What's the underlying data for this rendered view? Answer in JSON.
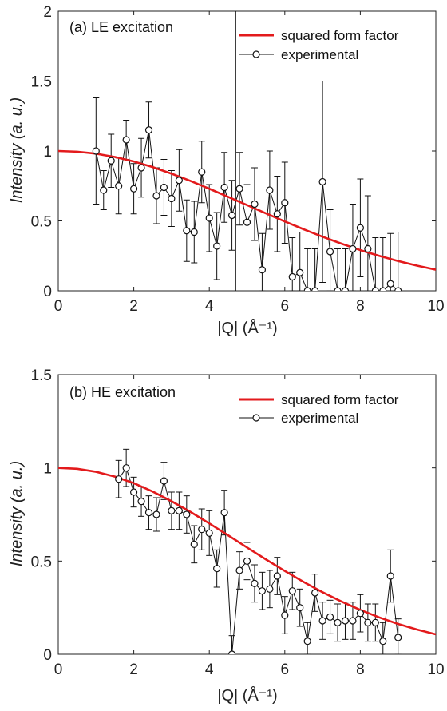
{
  "chart_data": [
    {
      "type": "scatter",
      "panel_label": "(a)",
      "title": "LE excitation",
      "xlabel": "|Q| (Å⁻¹)",
      "ylabel": "Intensity (a. u.)",
      "xlim": [
        0,
        10
      ],
      "ylim": [
        0,
        2
      ],
      "xticks": [
        0,
        2,
        4,
        6,
        8,
        10
      ],
      "yticks": [
        0,
        0.5,
        1,
        1.5,
        2
      ],
      "xtick_labels": [
        "0",
        "2",
        "4",
        "6",
        "8",
        "10"
      ],
      "ytick_labels": [
        "0",
        "0.5",
        "1",
        "1.5",
        "2"
      ],
      "grid": false,
      "legend_position": "top-right",
      "vline_x": 4.7,
      "series": [
        {
          "name": "squared form factor",
          "kind": "line",
          "color": "#e31a1c",
          "x": [
            0,
            0.5,
            1,
            1.5,
            2,
            2.5,
            3,
            3.5,
            4,
            4.5,
            5,
            5.5,
            6,
            6.5,
            7,
            7.5,
            8,
            8.5,
            9,
            9.5,
            10
          ],
          "y": [
            1.0,
            0.995,
            0.981,
            0.957,
            0.925,
            0.885,
            0.838,
            0.786,
            0.73,
            0.672,
            0.613,
            0.554,
            0.496,
            0.44,
            0.387,
            0.337,
            0.291,
            0.25,
            0.213,
            0.18,
            0.151
          ]
        },
        {
          "name": "experimental",
          "kind": "errorbar",
          "color": "#111111",
          "x": [
            1.0,
            1.2,
            1.4,
            1.6,
            1.8,
            2.0,
            2.2,
            2.4,
            2.6,
            2.8,
            3.0,
            3.2,
            3.4,
            3.6,
            3.8,
            4.0,
            4.2,
            4.4,
            4.6,
            4.8,
            5.0,
            5.2,
            5.4,
            5.6,
            5.8,
            6.0,
            6.2,
            6.4,
            6.6,
            6.8,
            7.0,
            7.2,
            7.4,
            7.6,
            7.8,
            8.0,
            8.2,
            8.4,
            8.6,
            8.8,
            9.0
          ],
          "y": [
            1.0,
            0.72,
            0.93,
            0.75,
            1.08,
            0.73,
            0.88,
            1.15,
            0.68,
            0.74,
            0.66,
            0.79,
            0.43,
            0.42,
            0.85,
            0.52,
            0.32,
            0.74,
            0.54,
            0.73,
            0.49,
            0.62,
            0.15,
            0.72,
            0.55,
            0.63,
            0.1,
            0.13,
            0.0,
            0.0,
            0.78,
            0.28,
            0.0,
            0.0,
            0.3,
            0.45,
            0.3,
            0.0,
            0.0,
            0.05,
            0.0
          ],
          "err": [
            0.38,
            0.14,
            0.19,
            0.2,
            0.14,
            0.18,
            0.21,
            0.2,
            0.2,
            0.2,
            0.2,
            0.22,
            0.22,
            0.22,
            0.22,
            0.24,
            0.24,
            0.25,
            0.25,
            0.26,
            0.27,
            0.26,
            0.26,
            0.28,
            0.27,
            0.29,
            0.28,
            0.29,
            0.3,
            0.3,
            0.72,
            0.3,
            0.3,
            0.3,
            0.32,
            0.35,
            0.38,
            0.38,
            0.38,
            0.36,
            0.42
          ]
        }
      ]
    },
    {
      "type": "scatter",
      "panel_label": "(b)",
      "title": "HE excitation",
      "xlabel": "|Q| (Å⁻¹)",
      "ylabel": "Intensity (a. u.)",
      "xlim": [
        0,
        10
      ],
      "ylim": [
        0,
        1.5
      ],
      "xticks": [
        0,
        2,
        4,
        6,
        8,
        10
      ],
      "yticks": [
        0,
        0.5,
        1,
        1.5
      ],
      "xtick_labels": [
        "0",
        "2",
        "4",
        "6",
        "8",
        "10"
      ],
      "ytick_labels": [
        "0",
        "0.5",
        "1",
        "1.5"
      ],
      "grid": false,
      "legend_position": "top-right",
      "series": [
        {
          "name": "squared form factor",
          "kind": "line",
          "color": "#e31a1c",
          "x": [
            0,
            0.5,
            1,
            1.5,
            2,
            2.5,
            3,
            3.5,
            4,
            4.5,
            5,
            5.5,
            6,
            6.5,
            7,
            7.5,
            8,
            8.5,
            9,
            9.5,
            10
          ],
          "y": [
            1.0,
            0.995,
            0.979,
            0.953,
            0.918,
            0.873,
            0.821,
            0.764,
            0.702,
            0.638,
            0.573,
            0.509,
            0.447,
            0.388,
            0.333,
            0.283,
            0.238,
            0.198,
            0.163,
            0.133,
            0.107
          ]
        },
        {
          "name": "experimental",
          "kind": "errorbar",
          "color": "#111111",
          "x": [
            1.6,
            1.8,
            2.0,
            2.2,
            2.4,
            2.6,
            2.8,
            3.0,
            3.2,
            3.4,
            3.6,
            3.8,
            4.0,
            4.2,
            4.4,
            4.6,
            4.8,
            5.0,
            5.2,
            5.4,
            5.6,
            5.8,
            6.0,
            6.2,
            6.4,
            6.6,
            6.8,
            7.0,
            7.2,
            7.4,
            7.6,
            7.8,
            8.0,
            8.2,
            8.4,
            8.6,
            8.8,
            9.0
          ],
          "y": [
            0.94,
            1.0,
            0.87,
            0.82,
            0.76,
            0.75,
            0.93,
            0.77,
            0.77,
            0.75,
            0.59,
            0.67,
            0.65,
            0.46,
            0.76,
            0.0,
            0.45,
            0.5,
            0.38,
            0.34,
            0.35,
            0.42,
            0.21,
            0.34,
            0.25,
            0.07,
            0.33,
            0.18,
            0.2,
            0.17,
            0.18,
            0.18,
            0.22,
            0.17,
            0.17,
            0.07,
            0.42,
            0.09
          ],
          "err": [
            0.1,
            0.1,
            0.08,
            0.08,
            0.09,
            0.09,
            0.1,
            0.1,
            0.1,
            0.1,
            0.1,
            0.11,
            0.12,
            0.1,
            0.12,
            0.1,
            0.1,
            0.1,
            0.1,
            0.1,
            0.1,
            0.1,
            0.1,
            0.1,
            0.1,
            0.1,
            0.1,
            0.1,
            0.09,
            0.1,
            0.1,
            0.1,
            0.1,
            0.1,
            0.1,
            0.1,
            0.14,
            0.1
          ]
        }
      ]
    }
  ]
}
